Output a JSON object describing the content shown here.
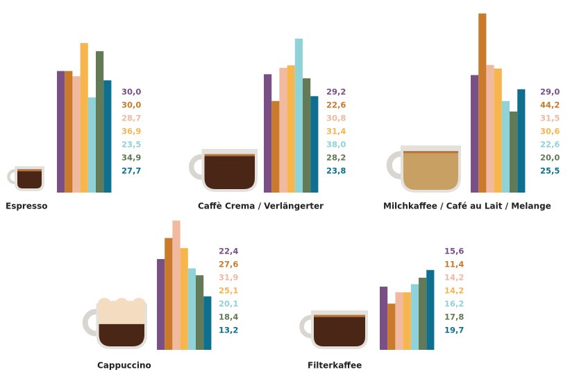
{
  "chart_data": [
    {
      "type": "bar",
      "title": "Espresso",
      "values": [
        30.0,
        30.0,
        28.7,
        36.9,
        23.5,
        34.9,
        27.7
      ],
      "value_labels": [
        "30,0",
        "30,0",
        "28,7",
        "36,9",
        "23,5",
        "34,9",
        "27,7"
      ],
      "colors": [
        "#7a4f86",
        "#c97a2a",
        "#f0b9a0",
        "#f7b54e",
        "#8fd3d8",
        "#627a55",
        "#0f6f8f"
      ]
    },
    {
      "type": "bar",
      "title": "Caffè Crema / Verlängerter",
      "values": [
        29.2,
        22.6,
        30.8,
        31.4,
        38.0,
        28.2,
        23.8
      ],
      "value_labels": [
        "29,2",
        "22,6",
        "30,8",
        "31,4",
        "38,0",
        "28,2",
        "23,8"
      ],
      "colors": [
        "#7a4f86",
        "#c97a2a",
        "#f0b9a0",
        "#f7b54e",
        "#8fd3d8",
        "#627a55",
        "#0f6f8f"
      ]
    },
    {
      "type": "bar",
      "title": "Milchkaffee / Café au Lait / Melange",
      "values": [
        29.0,
        44.2,
        31.5,
        30.6,
        22.6,
        20.0,
        25.5
      ],
      "value_labels": [
        "29,0",
        "44,2",
        "31,5",
        "30,6",
        "22,6",
        "20,0",
        "25,5"
      ],
      "colors": [
        "#7a4f86",
        "#c97a2a",
        "#f0b9a0",
        "#f7b54e",
        "#8fd3d8",
        "#627a55",
        "#0f6f8f"
      ]
    },
    {
      "type": "bar",
      "title": "Cappuccino",
      "values": [
        22.4,
        27.6,
        31.9,
        25.1,
        20.1,
        18.4,
        13.2
      ],
      "value_labels": [
        "22,4",
        "27,6",
        "31,9",
        "25,1",
        "20,1",
        "18,4",
        "13,2"
      ],
      "colors": [
        "#7a4f86",
        "#c97a2a",
        "#f0b9a0",
        "#f7b54e",
        "#8fd3d8",
        "#627a55",
        "#0f6f8f"
      ]
    },
    {
      "type": "bar",
      "title": "Filterkaffee",
      "values": [
        15.6,
        11.4,
        14.2,
        14.2,
        16.2,
        17.8,
        19.7
      ],
      "value_labels": [
        "15,6",
        "11,4",
        "14,2",
        "14,2",
        "16,2",
        "17,8",
        "19,7"
      ],
      "colors": [
        "#7a4f86",
        "#c97a2a",
        "#f0b9a0",
        "#f7b54e",
        "#8fd3d8",
        "#627a55",
        "#0f6f8f"
      ]
    }
  ]
}
